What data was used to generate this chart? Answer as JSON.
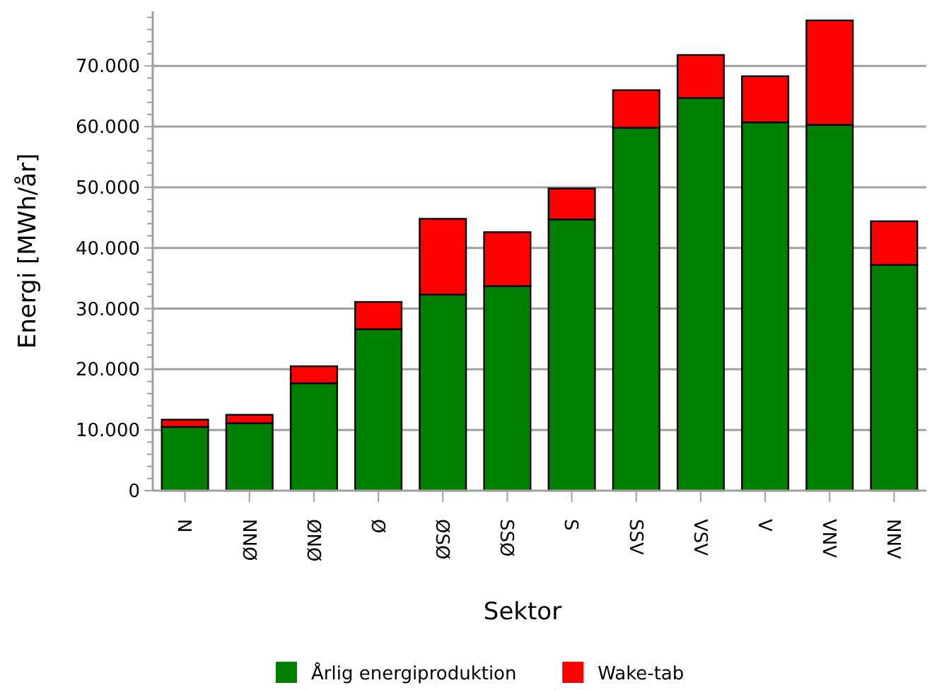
{
  "chart_data": {
    "type": "bar",
    "stacked": true,
    "xlabel": "Sektor",
    "ylabel": "Energi [MWh/år]",
    "categories": [
      "N",
      "NNØ",
      "ØNØ",
      "Ø",
      "ØSØ",
      "SSØ",
      "S",
      "SSV",
      "VSV",
      "V",
      "VNV",
      "NNV"
    ],
    "series": [
      {
        "name": "Årlig energiproduktion",
        "color": "#008000",
        "values": [
          10500,
          11100,
          17700,
          26600,
          32300,
          33700,
          44700,
          59800,
          64700,
          60700,
          60300,
          37200
        ]
      },
      {
        "name": "Wake-tab",
        "color": "#ff0000",
        "values": [
          1200,
          1400,
          2800,
          4500,
          12500,
          8900,
          5100,
          6200,
          7100,
          7600,
          17200,
          7200
        ]
      }
    ],
    "ylim": [
      0,
      79000
    ],
    "yticks": [
      {
        "value": 0,
        "label": "0"
      },
      {
        "value": 2000,
        "label": null
      },
      {
        "value": 4000,
        "label": null
      },
      {
        "value": 6000,
        "label": null
      },
      {
        "value": 8000,
        "label": null
      },
      {
        "value": 10000,
        "label": "10.000"
      },
      {
        "value": 12000,
        "label": null
      },
      {
        "value": 14000,
        "label": null
      },
      {
        "value": 16000,
        "label": null
      },
      {
        "value": 18000,
        "label": null
      },
      {
        "value": 20000,
        "label": "20.000"
      },
      {
        "value": 22000,
        "label": null
      },
      {
        "value": 24000,
        "label": null
      },
      {
        "value": 26000,
        "label": null
      },
      {
        "value": 28000,
        "label": null
      },
      {
        "value": 30000,
        "label": "30.000"
      },
      {
        "value": 32000,
        "label": null
      },
      {
        "value": 34000,
        "label": null
      },
      {
        "value": 36000,
        "label": null
      },
      {
        "value": 38000,
        "label": null
      },
      {
        "value": 40000,
        "label": "40.000"
      },
      {
        "value": 42000,
        "label": null
      },
      {
        "value": 44000,
        "label": null
      },
      {
        "value": 46000,
        "label": null
      },
      {
        "value": 48000,
        "label": null
      },
      {
        "value": 50000,
        "label": "50.000"
      },
      {
        "value": 52000,
        "label": null
      },
      {
        "value": 54000,
        "label": null
      },
      {
        "value": 56000,
        "label": null
      },
      {
        "value": 58000,
        "label": null
      },
      {
        "value": 60000,
        "label": "60.000"
      },
      {
        "value": 62000,
        "label": null
      },
      {
        "value": 64000,
        "label": null
      },
      {
        "value": 66000,
        "label": null
      },
      {
        "value": 68000,
        "label": null
      },
      {
        "value": 70000,
        "label": "70.000"
      },
      {
        "value": 72000,
        "label": null
      },
      {
        "value": 74000,
        "label": null
      },
      {
        "value": 76000,
        "label": null
      },
      {
        "value": 78000,
        "label": null
      }
    ],
    "grid": "y",
    "legend": "bottom"
  }
}
